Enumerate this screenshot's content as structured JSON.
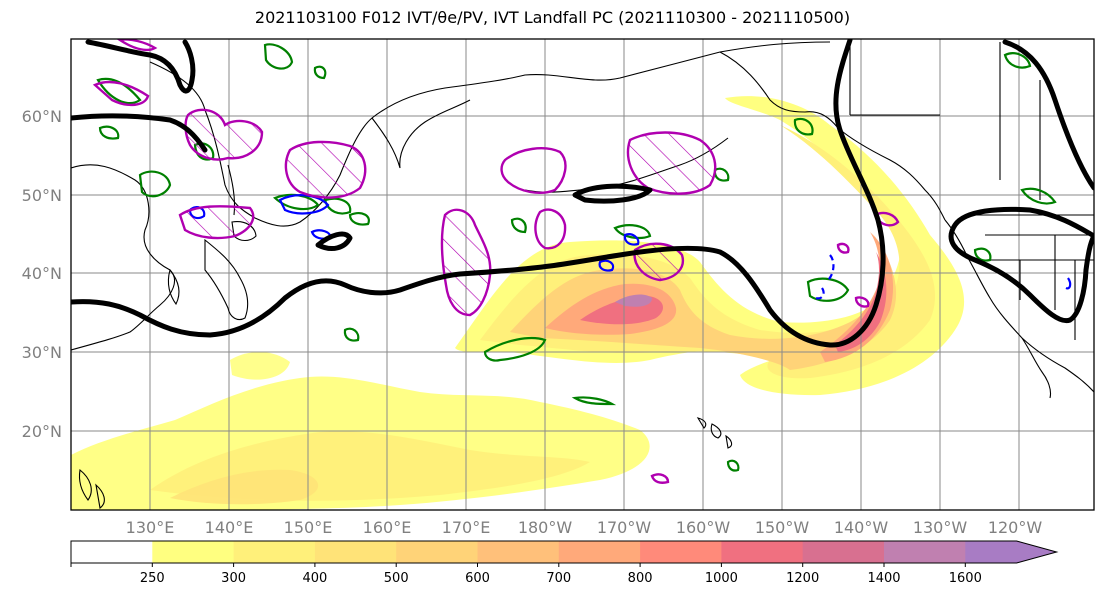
{
  "title": "2021103100 F012 IVT/θe/PV, IVT Landfall PC (2021110300 - 2021110500)",
  "map": {
    "lat_labels": [
      "60°N",
      "50°N",
      "40°N",
      "30°N",
      "20°N"
    ],
    "lon_labels": [
      "130°E",
      "140°E",
      "150°E",
      "160°E",
      "170°E",
      "180°W",
      "170°W",
      "160°W",
      "150°W",
      "140°W",
      "130°W",
      "120°W"
    ],
    "contour_colors": {
      "dynamic_tropopause": "#000000",
      "theta_e": "#008000",
      "pv_negative": "#0000ff",
      "pv_positive": "#b000b0",
      "coastline": "#000000"
    }
  },
  "colorbar": {
    "levels": [
      "250",
      "300",
      "400",
      "500",
      "600",
      "700",
      "800",
      "1000",
      "1200",
      "1400",
      "1600"
    ],
    "colors": [
      "#ffffff",
      "#ffff80",
      "#fff07a",
      "#ffe378",
      "#ffd378",
      "#ffc07a",
      "#ffa97a",
      "#ff8a7a",
      "#f07080",
      "#d87090",
      "#c080b0",
      "#a87cc4"
    ],
    "extend": "max"
  }
}
